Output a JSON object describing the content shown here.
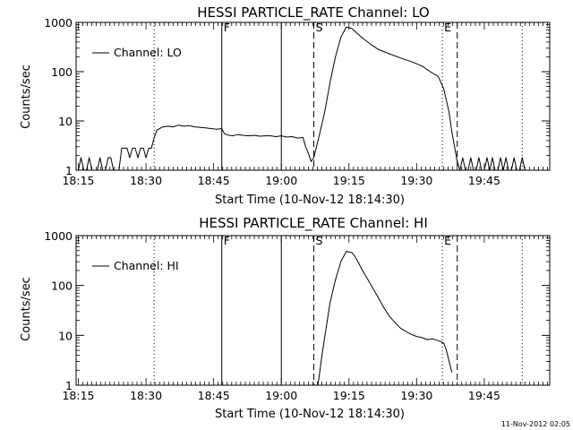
{
  "footer": {
    "timestamp": "11-Nov-2012 02:05"
  },
  "colors": {
    "ink": "#000000",
    "background": "#ffffff"
  },
  "chart_data": [
    {
      "type": "line",
      "title": "HESSI PARTICLE_RATE Channel: LO",
      "xlabel": "Start Time (10-Nov-12 18:14:30)",
      "ylabel": "Counts/sec",
      "y_scale": "log",
      "xlim": [
        18.2417,
        19.9917
      ],
      "ylim": [
        1,
        1000
      ],
      "x_ticks": [
        {
          "v": 18.25,
          "label": "18:15"
        },
        {
          "v": 18.5,
          "label": "18:30"
        },
        {
          "v": 18.75,
          "label": "18:45"
        },
        {
          "v": 19.0,
          "label": "19:00"
        },
        {
          "v": 19.25,
          "label": "19:15"
        },
        {
          "v": 19.5,
          "label": "19:30"
        },
        {
          "v": 19.75,
          "label": "19:45"
        }
      ],
      "y_ticks": [
        {
          "v": 1,
          "label": "1"
        },
        {
          "v": 10,
          "label": "10"
        },
        {
          "v": 100,
          "label": "100"
        },
        {
          "v": 1000,
          "label": "1000"
        }
      ],
      "legend": {
        "label": "Channel: LO",
        "position": "top-left"
      },
      "markers": [
        {
          "x": 18.53,
          "style": "dotted",
          "label": ""
        },
        {
          "x": 18.78,
          "style": "solid",
          "label": "F"
        },
        {
          "x": 19.0,
          "style": "solid",
          "label": ""
        },
        {
          "x": 19.12,
          "style": "dashed",
          "label": "S"
        },
        {
          "x": 19.595,
          "style": "dotted",
          "label": "E"
        },
        {
          "x": 19.65,
          "style": "dashed",
          "label": ""
        },
        {
          "x": 19.89,
          "style": "dotted",
          "label": ""
        }
      ],
      "series": [
        {
          "x": [
            18.25,
            18.26,
            18.27,
            18.28,
            18.29,
            18.3,
            18.31,
            18.32,
            18.33,
            18.34,
            18.35,
            18.36,
            18.37,
            18.38,
            18.39,
            18.4,
            18.41,
            18.42,
            18.43,
            18.44,
            18.45,
            18.46,
            18.47,
            18.48,
            18.49,
            18.5,
            18.51,
            18.52,
            18.53,
            18.54,
            18.56,
            18.58,
            18.6,
            18.62,
            18.64,
            18.66,
            18.68,
            18.7,
            18.72,
            18.74,
            18.76,
            18.78,
            18.79,
            18.8,
            18.82,
            18.84,
            18.86,
            18.88,
            18.9,
            18.92,
            18.94,
            18.96,
            18.98,
            19.0,
            19.02,
            19.04,
            19.06,
            19.08,
            19.09,
            19.1,
            19.11,
            19.12,
            19.13,
            19.14,
            19.16,
            19.18,
            19.2,
            19.22,
            19.24,
            19.26,
            19.28,
            19.3,
            19.33,
            19.36,
            19.4,
            19.44,
            19.48,
            19.52,
            19.55,
            19.58,
            19.6,
            19.62,
            19.63,
            19.64,
            19.65,
            19.66,
            19.67,
            19.68,
            19.69,
            19.7,
            19.71,
            19.72,
            19.73,
            19.74,
            19.75,
            19.76,
            19.77,
            19.78,
            19.79,
            19.8,
            19.81,
            19.82,
            19.83,
            19.84,
            19.85,
            19.86,
            19.87,
            19.88,
            19.89,
            19.9,
            19.92,
            19.94,
            19.96,
            19.98,
            19.99
          ],
          "y": [
            1,
            1.8,
            1,
            1,
            1.8,
            1,
            1,
            1,
            1.8,
            1,
            1,
            1.8,
            1.8,
            1,
            1,
            1,
            2.8,
            2.8,
            2.8,
            1.8,
            2.8,
            2.8,
            1.8,
            2.8,
            2.8,
            1.8,
            2.8,
            2.8,
            4.5,
            6.5,
            7.5,
            7.8,
            7.6,
            8.2,
            7.8,
            8.0,
            7.6,
            7.4,
            7.2,
            7.0,
            6.8,
            7.0,
            5.5,
            5.2,
            5.0,
            5.3,
            5.1,
            5.0,
            5.1,
            4.9,
            5.0,
            5.0,
            4.8,
            5.0,
            4.7,
            4.8,
            4.5,
            4.6,
            3.0,
            2.2,
            1.5,
            1.8,
            3.0,
            5.0,
            15,
            60,
            200,
            500,
            800,
            760,
            600,
            480,
            360,
            280,
            230,
            190,
            160,
            130,
            100,
            80,
            45,
            15,
            6,
            3,
            1.5,
            1,
            1.8,
            1,
            1,
            1.8,
            1,
            1,
            1.8,
            1,
            1,
            1.8,
            1,
            1.8,
            1,
            1,
            1.8,
            1,
            1.8,
            1,
            1,
            1.8,
            1,
            1,
            1.8,
            1,
            1,
            1,
            1,
            1,
            1
          ]
        }
      ]
    },
    {
      "type": "line",
      "title": "HESSI PARTICLE_RATE Channel: HI",
      "xlabel": "Start Time (10-Nov-12 18:14:30)",
      "ylabel": "Counts/sec",
      "y_scale": "log",
      "xlim": [
        18.2417,
        19.9917
      ],
      "ylim": [
        1,
        1000
      ],
      "x_ticks": [
        {
          "v": 18.25,
          "label": "18:15"
        },
        {
          "v": 18.5,
          "label": "18:30"
        },
        {
          "v": 18.75,
          "label": "18:45"
        },
        {
          "v": 19.0,
          "label": "19:00"
        },
        {
          "v": 19.25,
          "label": "19:15"
        },
        {
          "v": 19.5,
          "label": "19:30"
        },
        {
          "v": 19.75,
          "label": "19:45"
        }
      ],
      "y_ticks": [
        {
          "v": 1,
          "label": "1"
        },
        {
          "v": 10,
          "label": "10"
        },
        {
          "v": 100,
          "label": "100"
        },
        {
          "v": 1000,
          "label": "1000"
        }
      ],
      "legend": {
        "label": "Channel: HI",
        "position": "top-left"
      },
      "markers": [
        {
          "x": 18.53,
          "style": "dotted",
          "label": ""
        },
        {
          "x": 18.78,
          "style": "solid",
          "label": "F"
        },
        {
          "x": 19.0,
          "style": "solid",
          "label": ""
        },
        {
          "x": 19.12,
          "style": "dashed",
          "label": "S"
        },
        {
          "x": 19.595,
          "style": "dotted",
          "label": "E"
        },
        {
          "x": 19.65,
          "style": "dashed",
          "label": ""
        },
        {
          "x": 19.89,
          "style": "dotted",
          "label": ""
        }
      ],
      "series": [
        {
          "x": [
            19.135,
            19.14,
            19.15,
            19.16,
            19.17,
            19.18,
            19.2,
            19.22,
            19.24,
            19.26,
            19.27,
            19.28,
            19.3,
            19.32,
            19.34,
            19.36,
            19.38,
            19.4,
            19.42,
            19.44,
            19.46,
            19.48,
            19.5,
            19.52,
            19.54,
            19.56,
            19.58,
            19.6,
            19.61,
            19.62,
            19.63
          ],
          "y": [
            1,
            1.5,
            4,
            9,
            20,
            45,
            130,
            300,
            480,
            460,
            400,
            320,
            200,
            130,
            85,
            55,
            35,
            24,
            18,
            14,
            12,
            10.5,
            9.5,
            9,
            8.2,
            8.5,
            7.8,
            7,
            5,
            3,
            1.8
          ]
        }
      ]
    }
  ]
}
